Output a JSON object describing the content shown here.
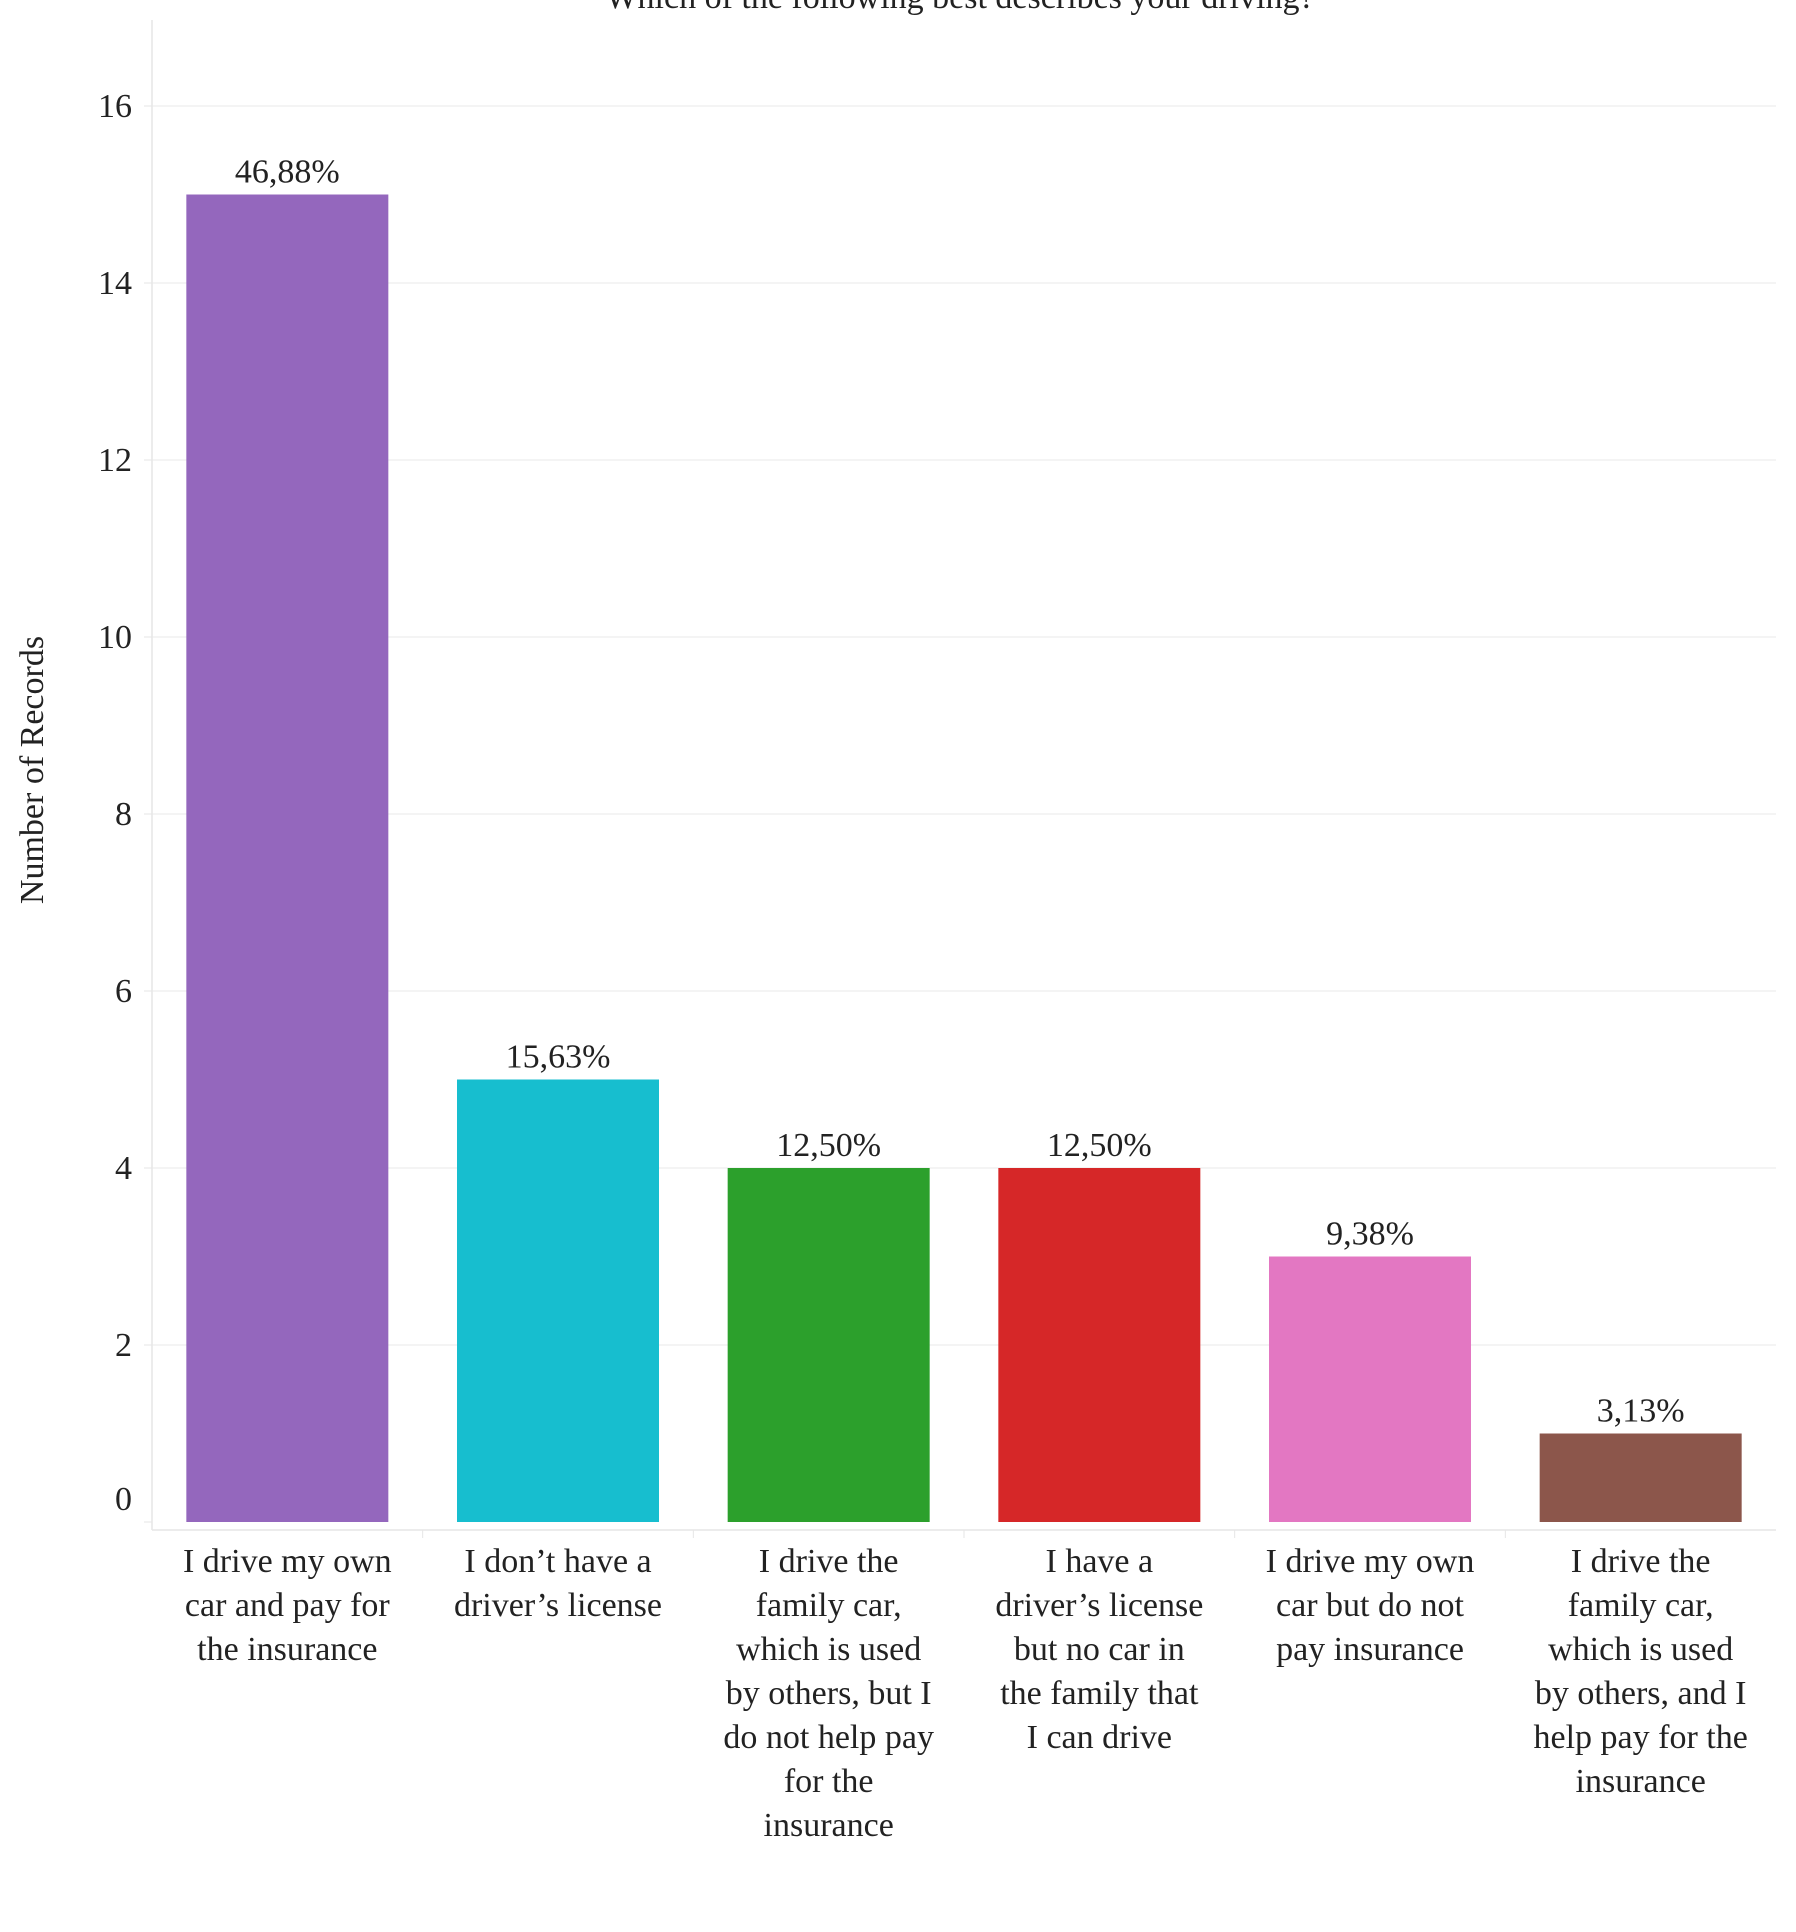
{
  "chart_data": {
    "type": "bar",
    "title": "Which of the following best describes your driving?",
    "xlabel": "",
    "ylabel": "Number of Records",
    "ylim": [
      0,
      17
    ],
    "yticks": [
      0,
      2,
      4,
      6,
      8,
      10,
      12,
      14,
      16
    ],
    "grid": true,
    "categories": [
      "I drive my own car and pay for the insurance",
      "I don't have a driver's license",
      "I drive the family car, which is used by others, but I do not help pay for the insurance",
      "I have a driver's license but no car in the family that I can drive",
      "I drive my own car but do not pay insurance",
      "I drive the family car, which is used by others, and I help pay for the insurance"
    ],
    "category_lines": [
      [
        "I drive my own",
        "car and pay for",
        "the insurance"
      ],
      [
        "I don’t have a",
        "driver’s license"
      ],
      [
        "I drive the",
        "family car,",
        "which is used",
        "by others, but I",
        "do not help pay",
        "for the",
        "insurance"
      ],
      [
        "I have a",
        "driver’s license",
        "but no car in",
        "the family that",
        "I can drive"
      ],
      [
        "I drive my own",
        "car but do not",
        "pay insurance"
      ],
      [
        "I drive the",
        "family car,",
        "which is used",
        "by others, and I",
        "help pay for the",
        "insurance"
      ]
    ],
    "values": [
      15,
      5,
      4,
      4,
      3,
      1
    ],
    "data_labels": [
      "46,88%",
      "15,63%",
      "12,50%",
      "12,50%",
      "9,38%",
      "3,13%"
    ],
    "colors": [
      "#9467bd",
      "#17becf",
      "#2ca02c",
      "#d62728",
      "#e377c2",
      "#8c564b"
    ]
  }
}
